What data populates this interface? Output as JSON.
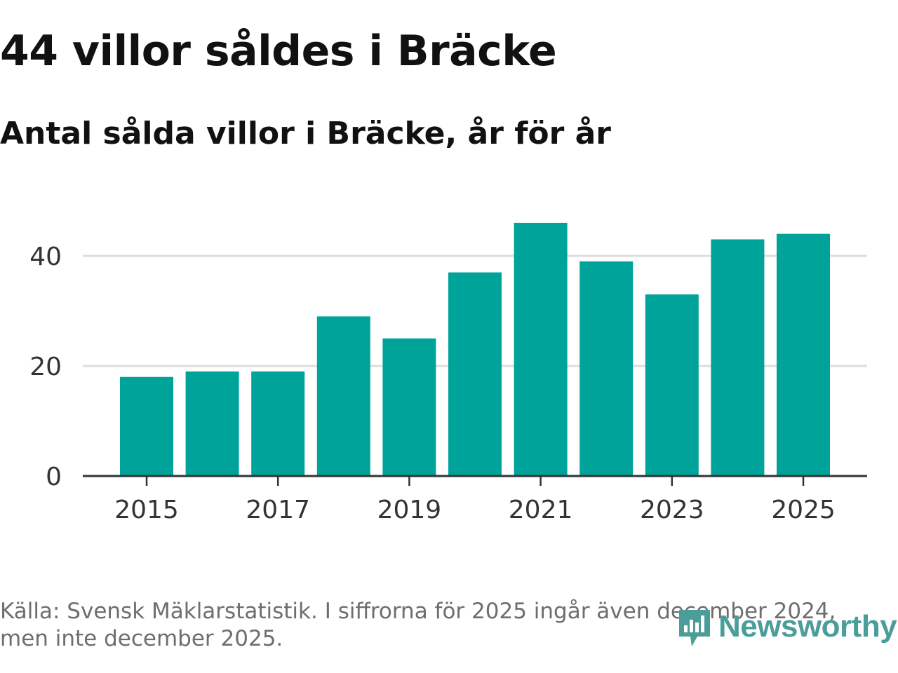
{
  "title": "44 villor såldes i Bräcke",
  "subtitle": "Antal sålda villor i Bräcke, år för år",
  "footer": "Källa: Svensk Mäklarstatistik. I siffrorna för 2025 ingår även december 2024, men inte december 2025.",
  "brand": {
    "name": "Newsworthy",
    "icon": "newsworthy-logo-icon",
    "color": "#4a9d99"
  },
  "colors": {
    "bar": "#00a39a",
    "grid": "#dddddd",
    "axis": "#333333"
  },
  "chart_data": {
    "type": "bar",
    "title": "44 villor såldes i Bräcke",
    "subtitle": "Antal sålda villor i Bräcke, år för år",
    "categories": [
      "2015",
      "2016",
      "2017",
      "2018",
      "2019",
      "2020",
      "2021",
      "2022",
      "2023",
      "2024",
      "2025"
    ],
    "values": [
      18,
      19,
      19,
      29,
      25,
      37,
      46,
      39,
      33,
      43,
      44
    ],
    "x_tick_labels": [
      "2015",
      "2017",
      "2019",
      "2021",
      "2023",
      "2025"
    ],
    "y_ticks": [
      0,
      20,
      40
    ],
    "ylim": [
      0,
      46
    ],
    "xlabel": "",
    "ylabel": "",
    "grid": true,
    "legend": "none"
  }
}
